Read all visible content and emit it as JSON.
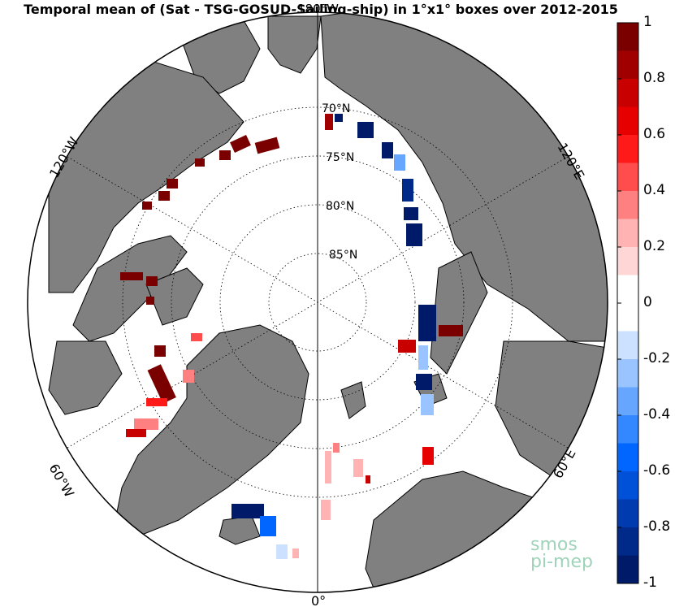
{
  "title": "Temporal mean of (Sat - TSG-GOSUD-Sailing-ship) in 1°x1° boxes over 2012-2015",
  "map": {
    "projection": "north polar stereographic",
    "ocean_color": "#ffffff",
    "land_color": "#808080",
    "latitude_labels": [
      "70°N",
      "75°N",
      "80°N",
      "85°N"
    ],
    "longitude_labels": [
      "180°W",
      "120°W",
      "60°W",
      "0°",
      "60°E",
      "120°E"
    ]
  },
  "colorbar": {
    "ticks": [
      "1",
      "0.8",
      "0.6",
      "0.4",
      "0.2",
      "0",
      "-0.2",
      "-0.4",
      "-0.6",
      "-0.8",
      "-1"
    ],
    "vmin": -1,
    "vmax": 1,
    "colors": [
      "#7a0000",
      "#a00000",
      "#c80000",
      "#e60000",
      "#ff1a1a",
      "#ff4d4d",
      "#ff8080",
      "#ffb3b3",
      "#ffd6d6",
      "#ffffff",
      "#ffffff",
      "#cce0ff",
      "#99c4ff",
      "#66a6ff",
      "#3388ff",
      "#0066ff",
      "#0050d8",
      "#003cb0",
      "#002a8a",
      "#001a6a"
    ]
  },
  "logo": {
    "line1": "smos",
    "line2": "pi-mep"
  }
}
